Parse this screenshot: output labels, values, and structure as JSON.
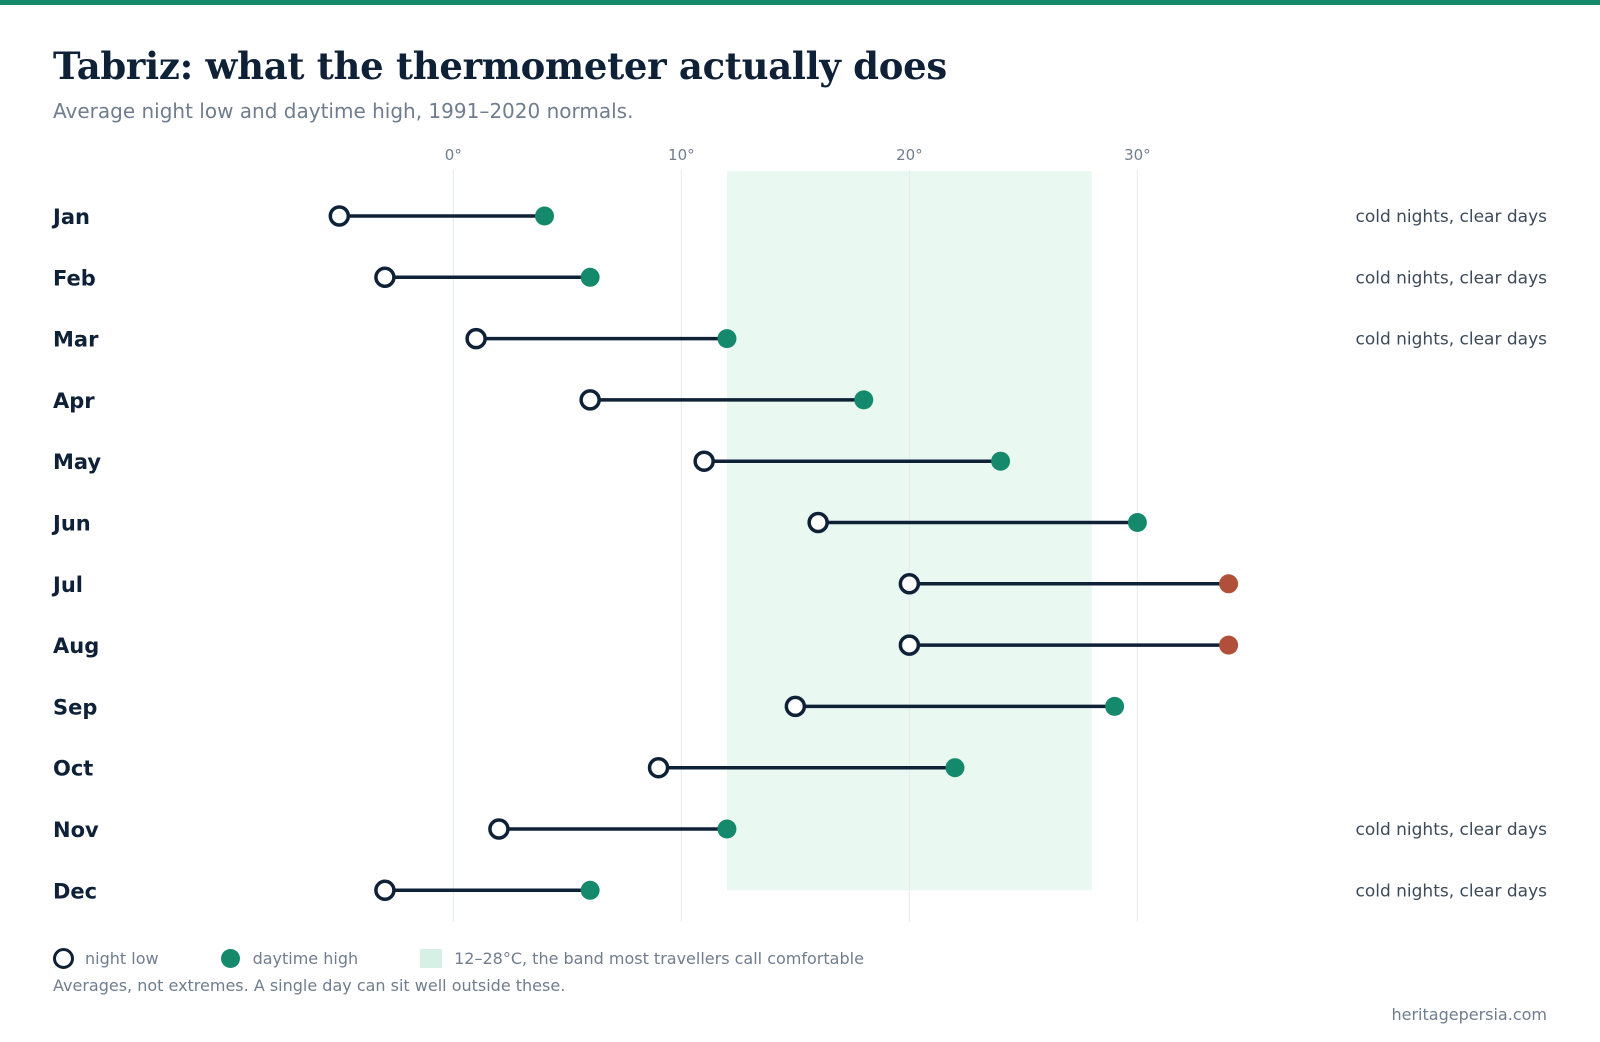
{
  "title": "Tabriz: what the thermometer actually does",
  "subtitle": "Average night low and daytime high, 1991–2020 normals.",
  "colors": {
    "accent": "#15896b",
    "low_marker": "#0f2137",
    "high_marker": "#15896b",
    "hot_marker": "#b0503a",
    "comfort_band": "#eaf8f2",
    "annotation_text": "#3c4a5a"
  },
  "legend": {
    "low_label": "night low",
    "high_label": "daytime high",
    "band_label": "12–28°C, the band most travellers call comfortable"
  },
  "footnote": "Averages, not extremes. A single day can sit well outside these.",
  "source": "heritagepersia.com",
  "chart_data": {
    "type": "dumbbell",
    "title": "Tabriz: what the thermometer actually does",
    "subtitle": "Average night low and daytime high, 1991–2020 normals.",
    "x_axis": {
      "ticks": [
        0,
        10,
        20,
        30
      ],
      "tick_labels": [
        "0°",
        "10°",
        "20°",
        "30°"
      ],
      "range": [
        -17.6,
        34.5
      ],
      "gridlines": true
    },
    "comfort_band": [
      12,
      28
    ],
    "categories": [
      "Jan",
      "Feb",
      "Mar",
      "Apr",
      "May",
      "Jun",
      "Jul",
      "Aug",
      "Sep",
      "Oct",
      "Nov",
      "Dec"
    ],
    "series": [
      {
        "name": "night low",
        "values": [
          -5,
          -3,
          1,
          6,
          11,
          16,
          20,
          20,
          15,
          9,
          2,
          -3
        ]
      },
      {
        "name": "daytime high",
        "values": [
          4,
          6,
          12,
          18,
          24,
          30,
          34,
          34,
          29,
          22,
          12,
          6
        ]
      }
    ],
    "hot_months": [
      "Jul",
      "Aug"
    ],
    "annotations": [
      "cold nights, clear days",
      "cold nights, clear days",
      "cold nights, clear days",
      "",
      "",
      "",
      "",
      "",
      "",
      "",
      "cold nights, clear days",
      "cold nights, clear days"
    ]
  }
}
